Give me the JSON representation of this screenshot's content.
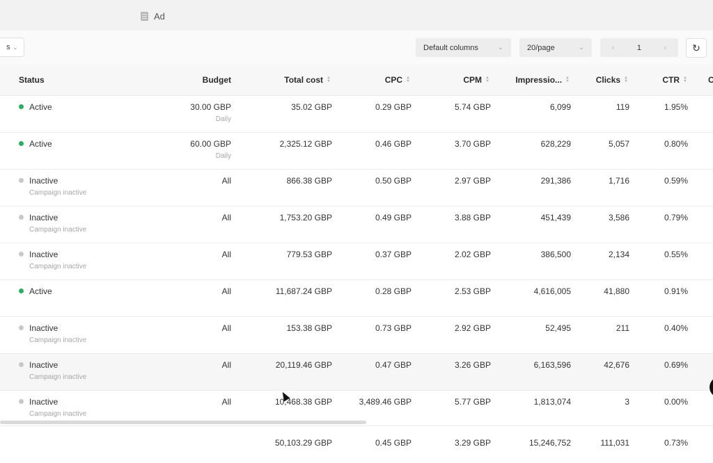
{
  "header": {
    "tab_label": "Ad"
  },
  "toolbar": {
    "filter_label": "s",
    "columns_select": "Default columns",
    "page_size_select": "20/page",
    "page_number": "1",
    "prev_glyph": "‹",
    "next_glyph": "›",
    "refresh_glyph": "↻"
  },
  "columns": {
    "status": "Status",
    "budget": "Budget",
    "total_cost": "Total cost",
    "cpc": "CPC",
    "cpm": "CPM",
    "impressions": "Impressio...",
    "clicks": "Clicks",
    "ctr": "CTR",
    "overflow": "C"
  },
  "colors": {
    "active": "#2eaa62",
    "inactive": "#c8c8cb"
  },
  "rows": [
    {
      "status": "Active",
      "status_sub": "",
      "budget": "30.00 GBP",
      "budget_sub": "Daily",
      "total_cost": "35.02 GBP",
      "cpc": "0.29 GBP",
      "cpm": "5.74 GBP",
      "impressions": "6,099",
      "clicks": "119",
      "ctr": "1.95%"
    },
    {
      "status": "Active",
      "status_sub": "",
      "budget": "60.00 GBP",
      "budget_sub": "Daily",
      "total_cost": "2,325.12 GBP",
      "cpc": "0.46 GBP",
      "cpm": "3.70 GBP",
      "impressions": "628,229",
      "clicks": "5,057",
      "ctr": "0.80%"
    },
    {
      "status": "Inactive",
      "status_sub": "Campaign inactive",
      "budget": "All",
      "budget_sub": "",
      "total_cost": "866.38 GBP",
      "cpc": "0.50 GBP",
      "cpm": "2.97 GBP",
      "impressions": "291,386",
      "clicks": "1,716",
      "ctr": "0.59%"
    },
    {
      "status": "Inactive",
      "status_sub": "Campaign inactive",
      "budget": "All",
      "budget_sub": "",
      "total_cost": "1,753.20 GBP",
      "cpc": "0.49 GBP",
      "cpm": "3.88 GBP",
      "impressions": "451,439",
      "clicks": "3,586",
      "ctr": "0.79%"
    },
    {
      "status": "Inactive",
      "status_sub": "Campaign inactive",
      "budget": "All",
      "budget_sub": "",
      "total_cost": "779.53 GBP",
      "cpc": "0.37 GBP",
      "cpm": "2.02 GBP",
      "impressions": "386,500",
      "clicks": "2,134",
      "ctr": "0.55%"
    },
    {
      "status": "Active",
      "status_sub": "",
      "budget": "All",
      "budget_sub": "",
      "total_cost": "11,687.24 GBP",
      "cpc": "0.28 GBP",
      "cpm": "2.53 GBP",
      "impressions": "4,616,005",
      "clicks": "41,880",
      "ctr": "0.91%"
    },
    {
      "status": "Inactive",
      "status_sub": "Campaign inactive",
      "budget": "All",
      "budget_sub": "",
      "total_cost": "153.38 GBP",
      "cpc": "0.73 GBP",
      "cpm": "2.92 GBP",
      "impressions": "52,495",
      "clicks": "211",
      "ctr": "0.40%"
    },
    {
      "status": "Inactive",
      "status_sub": "Campaign inactive",
      "budget": "All",
      "budget_sub": "",
      "total_cost": "20,119.46 GBP",
      "cpc": "0.47 GBP",
      "cpm": "3.26 GBP",
      "impressions": "6,163,596",
      "clicks": "42,676",
      "ctr": "0.69%"
    },
    {
      "status": "Inactive",
      "status_sub": "Campaign inactive",
      "budget": "All",
      "budget_sub": "",
      "total_cost": "10,468.38 GBP",
      "cpc": "3,489.46 GBP",
      "cpm": "5.77 GBP",
      "impressions": "1,813,074",
      "clicks": "3",
      "ctr": "0.00%"
    }
  ],
  "totals": {
    "total_cost": "50,103.29 GBP",
    "cpc": "0.45 GBP",
    "cpm": "3.29 GBP",
    "impressions": "15,246,752",
    "clicks": "111,031",
    "ctr": "0.73%"
  }
}
